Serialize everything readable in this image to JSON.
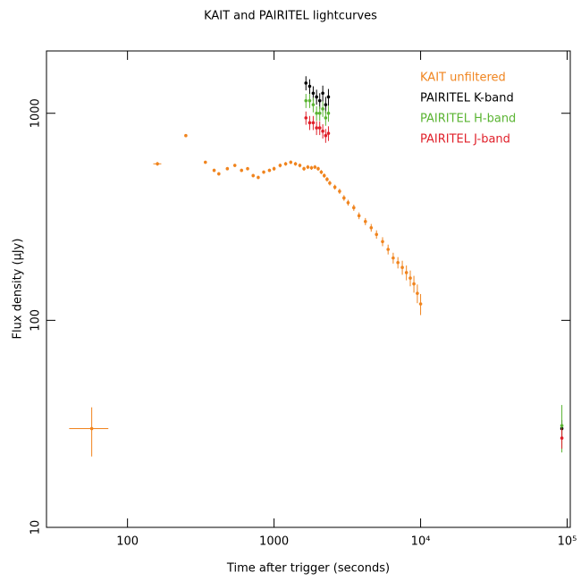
{
  "chart_data": {
    "type": "scatter",
    "title": "KAIT and PAIRITEL lightcurves",
    "x_label": "Time after trigger (seconds)",
    "y_label": "Flux density (μJy)",
    "log_x": true,
    "log_y": true,
    "xlim": [
      28,
      105000
    ],
    "ylim": [
      10,
      2000
    ],
    "xticks": [
      100,
      1000,
      {
        "value": 10000,
        "label": "10⁴"
      },
      {
        "value": 100000,
        "label": "10⁵"
      }
    ],
    "yticks": [
      10,
      100,
      1000
    ],
    "legend": "upper right",
    "series": [
      {
        "name": "KAIT unfiltered",
        "color": "#f0841e",
        "x": [
          57,
          160,
          250,
          340,
          390,
          420,
          480,
          540,
          600,
          660,
          720,
          780,
          850,
          930,
          1000,
          1100,
          1200,
          1300,
          1400,
          1500,
          1600,
          1700,
          1800,
          1900,
          2000,
          2100,
          2200,
          2300,
          2400,
          2600,
          2800,
          3000,
          3200,
          3500,
          3800,
          4200,
          4600,
          5000,
          5500,
          6000,
          6500,
          7000,
          7500,
          8000,
          8500,
          9000,
          9500,
          10000
        ],
        "xerr": [
          17,
          10,
          null,
          null,
          null,
          null,
          null,
          null,
          null,
          null,
          null,
          null,
          null,
          null,
          null,
          null,
          null,
          null,
          null,
          null,
          null,
          null,
          null,
          null,
          null,
          null,
          null,
          null,
          null,
          null,
          null,
          null,
          null,
          null,
          null,
          null,
          null,
          null,
          null,
          null,
          null,
          null,
          null,
          null,
          null,
          null,
          null,
          null
        ],
        "values": [
          30,
          570,
          780,
          580,
          530,
          510,
          540,
          560,
          530,
          540,
          500,
          490,
          520,
          530,
          540,
          560,
          570,
          580,
          570,
          560,
          540,
          550,
          545,
          550,
          540,
          520,
          500,
          480,
          460,
          440,
          420,
          390,
          370,
          350,
          320,
          300,
          280,
          260,
          240,
          220,
          200,
          190,
          180,
          170,
          160,
          150,
          135,
          120
        ],
        "yerr": [
          8,
          12,
          12,
          10,
          10,
          10,
          10,
          10,
          10,
          10,
          10,
          10,
          10,
          10,
          12,
          12,
          12,
          12,
          12,
          12,
          12,
          12,
          12,
          12,
          12,
          12,
          12,
          12,
          12,
          12,
          12,
          12,
          12,
          12,
          12,
          12,
          12,
          12,
          12,
          12,
          12,
          12,
          14,
          14,
          14,
          14,
          14,
          14
        ]
      },
      {
        "name": "PAIRITEL K-band",
        "color": "#000000",
        "x": [
          1650,
          1750,
          1850,
          1950,
          2050,
          2150,
          2250,
          2350,
          92000
        ],
        "values": [
          1400,
          1350,
          1250,
          1200,
          1150,
          1250,
          1100,
          1200,
          30
        ],
        "yerr": [
          110,
          110,
          100,
          100,
          100,
          110,
          100,
          110,
          3
        ]
      },
      {
        "name": "PAIRITEL H-band",
        "color": "#5ab432",
        "x": [
          1650,
          1750,
          1850,
          1950,
          2050,
          2150,
          2250,
          2350,
          92000
        ],
        "values": [
          1150,
          1150,
          1100,
          1000,
          1000,
          1050,
          950,
          1000,
          31
        ],
        "yerr": [
          90,
          90,
          90,
          80,
          80,
          90,
          80,
          90,
          8
        ]
      },
      {
        "name": "PAIRITEL J-band",
        "color": "#e0202a",
        "x": [
          1650,
          1750,
          1850,
          1950,
          2050,
          2150,
          2250,
          2350,
          92000
        ],
        "values": [
          950,
          900,
          900,
          850,
          850,
          820,
          780,
          800,
          27
        ],
        "yerr": [
          70,
          70,
          70,
          65,
          65,
          65,
          60,
          65,
          3
        ]
      }
    ]
  }
}
